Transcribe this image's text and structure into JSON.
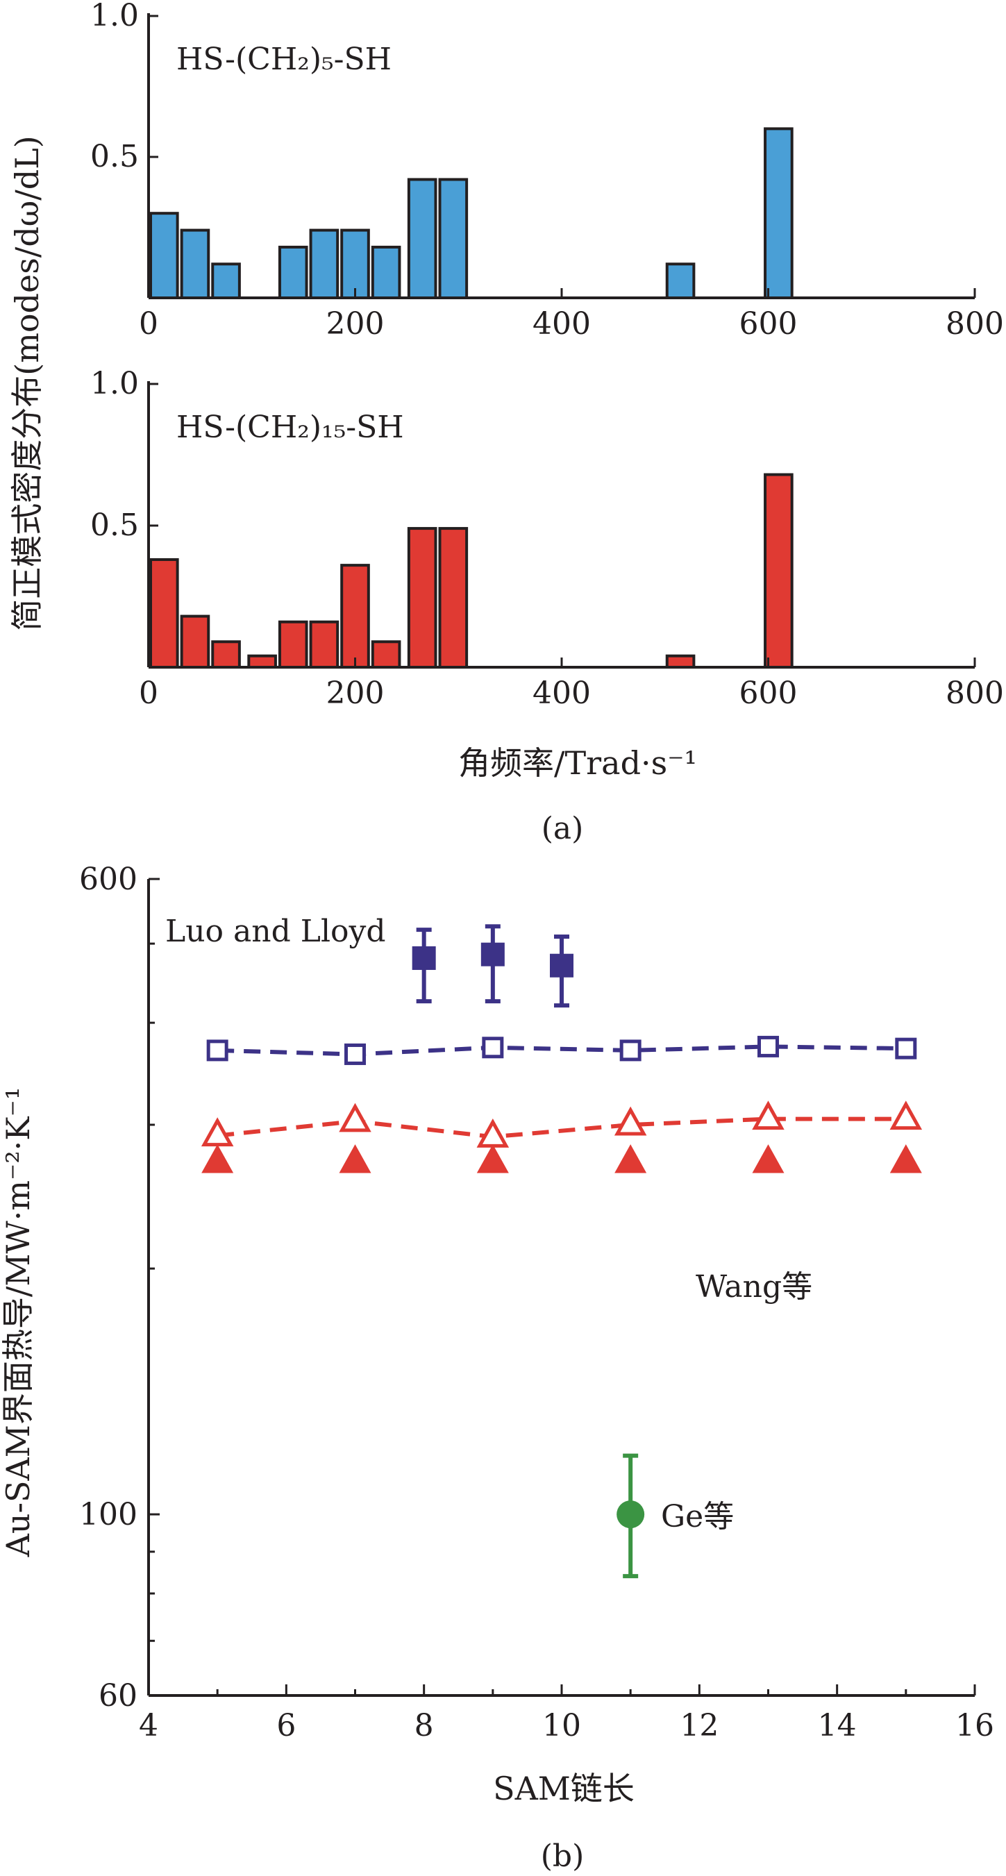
{
  "chart_data": [
    {
      "type": "bar",
      "panel": "top",
      "annotation": "HS-(CH₂)₅-SH",
      "color": "#4a9fd6",
      "xlim": [
        0,
        800
      ],
      "ylim": [
        0,
        1.0
      ],
      "x_ticks": [
        "0",
        "200",
        "400",
        "600",
        "800"
      ],
      "y_ticks": [
        "0.5",
        "1.0"
      ],
      "x": [
        15,
        45,
        75,
        140,
        170,
        200,
        230,
        265,
        295,
        515,
        610
      ],
      "values": [
        0.3,
        0.24,
        0.12,
        0.18,
        0.24,
        0.24,
        0.18,
        0.42,
        0.42,
        0.12,
        0.6
      ]
    },
    {
      "type": "bar",
      "panel": "bottom",
      "annotation": "HS-(CH₂)₁₅-SH",
      "color": "#e03a33",
      "xlim": [
        0,
        800
      ],
      "ylim": [
        0,
        1.0
      ],
      "x_ticks": [
        "0",
        "200",
        "400",
        "600",
        "800"
      ],
      "y_ticks": [
        "0.5",
        "1.0"
      ],
      "x": [
        15,
        45,
        75,
        110,
        140,
        170,
        200,
        230,
        265,
        295,
        515,
        610
      ],
      "values": [
        0.38,
        0.18,
        0.09,
        0.04,
        0.16,
        0.16,
        0.36,
        0.09,
        0.49,
        0.49,
        0.04,
        0.68
      ]
    },
    {
      "type": "scatter",
      "panel": "b",
      "log_y": true,
      "xlim": [
        4,
        16
      ],
      "ylim": [
        60,
        600
      ],
      "x_ticks": [
        "4",
        "6",
        "8",
        "10",
        "12",
        "14",
        "16"
      ],
      "y_ticks": [
        "60",
        "100",
        "600"
      ],
      "series": [
        {
          "name": "Luo and Lloyd",
          "color": "#3c3287",
          "marker": "filled-square",
          "x": [
            8,
            9,
            10
          ],
          "y": [
            480,
            485,
            470
          ],
          "err_low": [
            425,
            425,
            420
          ],
          "err_high": [
            520,
            525,
            510
          ]
        },
        {
          "color": "#3c3287",
          "marker": "open-square",
          "line": "dashed",
          "x": [
            5,
            7,
            9,
            11,
            13,
            15
          ],
          "y": [
            370,
            366,
            373,
            370,
            374,
            372
          ]
        },
        {
          "color": "#e03a33",
          "marker": "open-triangle",
          "line": "dashed",
          "x": [
            5,
            7,
            9,
            11,
            13,
            15
          ],
          "y": [
            291,
            303,
            290,
            300,
            305,
            305
          ]
        },
        {
          "name": "Wang等",
          "color": "#e03a33",
          "marker": "filled-triangle",
          "x": [
            5,
            7,
            9,
            11,
            13,
            15
          ],
          "y": [
            270,
            270,
            270,
            270,
            270,
            270
          ]
        },
        {
          "name": "Ge等",
          "color": "#3b9443",
          "marker": "filled-circle",
          "x": [
            11
          ],
          "y": [
            100
          ],
          "err_low": [
            84
          ],
          "err_high": [
            118
          ]
        }
      ]
    }
  ],
  "labels": {
    "a_ylabel": "简正模式密度分布(modes/dω/dL)",
    "a_xlabel": "角频率/Trad·s⁻¹",
    "a_caption": "(a)",
    "b_ylabel": "Au-SAM界面热导/MW·m⁻²·K⁻¹",
    "b_xlabel": "SAM链长",
    "b_caption": "(b)"
  }
}
